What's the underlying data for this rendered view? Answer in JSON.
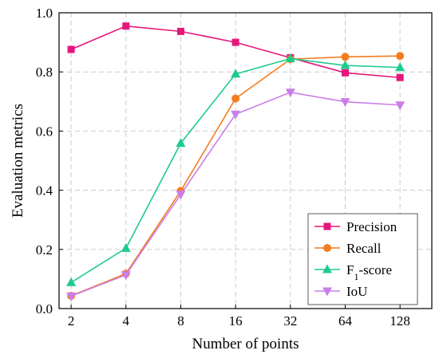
{
  "chart_data": {
    "type": "line",
    "x_tick_labels": [
      "2",
      "4",
      "8",
      "16",
      "32",
      "64",
      "128"
    ],
    "xlabel": "Number of points",
    "ylabel": "Evaluation metrics",
    "ylim": [
      0.0,
      1.0
    ],
    "y_ticks": [
      0.0,
      0.2,
      0.4,
      0.6,
      0.8,
      1.0
    ],
    "y_tick_labels": [
      "0.0",
      "0.2",
      "0.4",
      "0.6",
      "0.8",
      "1.0"
    ],
    "grid": true,
    "legend_position": "bottom-right",
    "series": [
      {
        "name": "Precision",
        "color": "#e5177b",
        "marker": "square",
        "values": [
          0.876,
          0.955,
          0.937,
          0.9,
          0.848,
          0.797,
          0.781
        ]
      },
      {
        "name": "Recall",
        "color": "#f47d20",
        "marker": "circle",
        "values": [
          0.043,
          0.118,
          0.398,
          0.71,
          0.843,
          0.851,
          0.854
        ]
      },
      {
        "name": "F",
        "name_sub": "1",
        "name_suffix": "-score",
        "color": "#1dcc8d",
        "marker": "triangle-up",
        "values": [
          0.088,
          0.204,
          0.559,
          0.793,
          0.845,
          0.822,
          0.815
        ]
      },
      {
        "name": "IoU",
        "color": "#c97ee8",
        "marker": "triangle-down",
        "values": [
          0.042,
          0.114,
          0.386,
          0.657,
          0.731,
          0.699,
          0.688
        ]
      }
    ]
  }
}
